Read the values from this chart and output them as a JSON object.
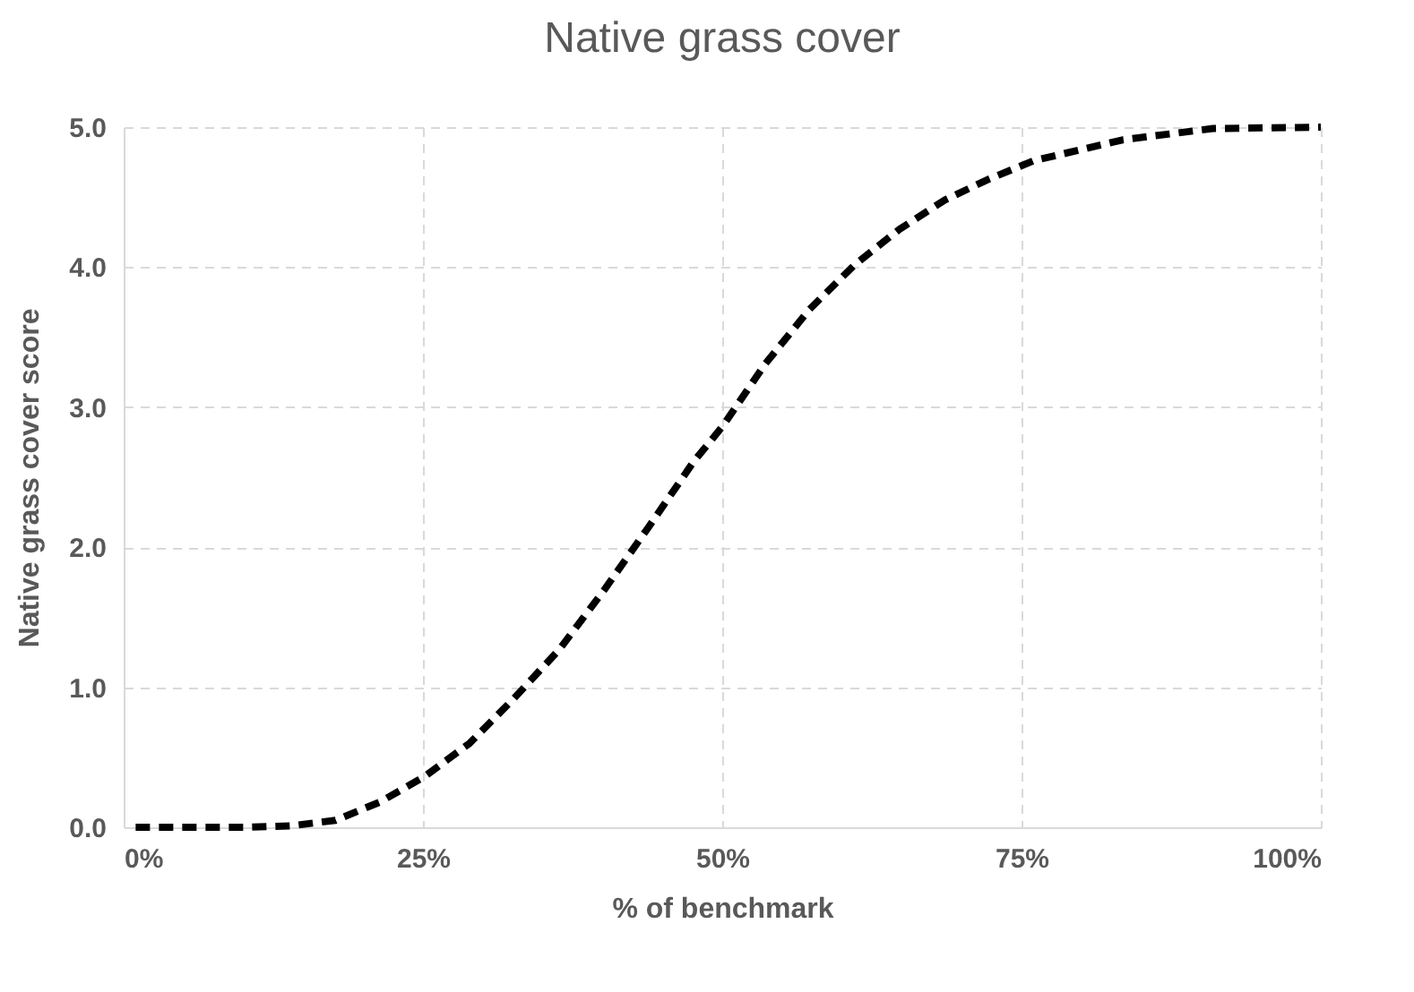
{
  "chart_data": {
    "type": "line",
    "title": "Native grass cover",
    "xlabel": "% of benchmark",
    "ylabel": "Native grass cover score",
    "x": [
      1,
      5,
      10,
      14,
      17.7,
      21.4,
      25.1,
      28.9,
      32.6,
      36.4,
      40.1,
      43.9,
      47.6,
      50,
      53.6,
      57.3,
      61.1,
      64.8,
      68.6,
      72.3,
      76,
      83.5,
      91,
      100
    ],
    "series": [
      {
        "color": "#000000",
        "values": [
          0,
          0,
          0,
          0.01,
          0.05,
          0.18,
          0.36,
          0.6,
          0.92,
          1.27,
          1.69,
          2.15,
          2.61,
          2.86,
          3.31,
          3.7,
          4.02,
          4.27,
          4.48,
          4.63,
          4.76,
          4.91,
          4.99,
          5.0
        ]
      }
    ],
    "xlim": [
      0,
      100
    ],
    "xticks": [
      {
        "value": 0,
        "label": "0%"
      },
      {
        "value": 25,
        "label": "25%"
      },
      {
        "value": 50,
        "label": "50%"
      },
      {
        "value": 75,
        "label": "75%"
      },
      {
        "value": 100,
        "label": "100%"
      }
    ],
    "ylim": [
      0,
      5
    ],
    "yticks": [
      {
        "value": 0,
        "label": "0.0"
      },
      {
        "value": 1,
        "label": "1.0"
      },
      {
        "value": 2,
        "label": "2.0"
      },
      {
        "value": 3,
        "label": "3.0"
      },
      {
        "value": 4,
        "label": "4.0"
      },
      {
        "value": 5,
        "label": "5.0"
      }
    ],
    "grid": true,
    "line_style": "dashed",
    "marker": "none"
  }
}
